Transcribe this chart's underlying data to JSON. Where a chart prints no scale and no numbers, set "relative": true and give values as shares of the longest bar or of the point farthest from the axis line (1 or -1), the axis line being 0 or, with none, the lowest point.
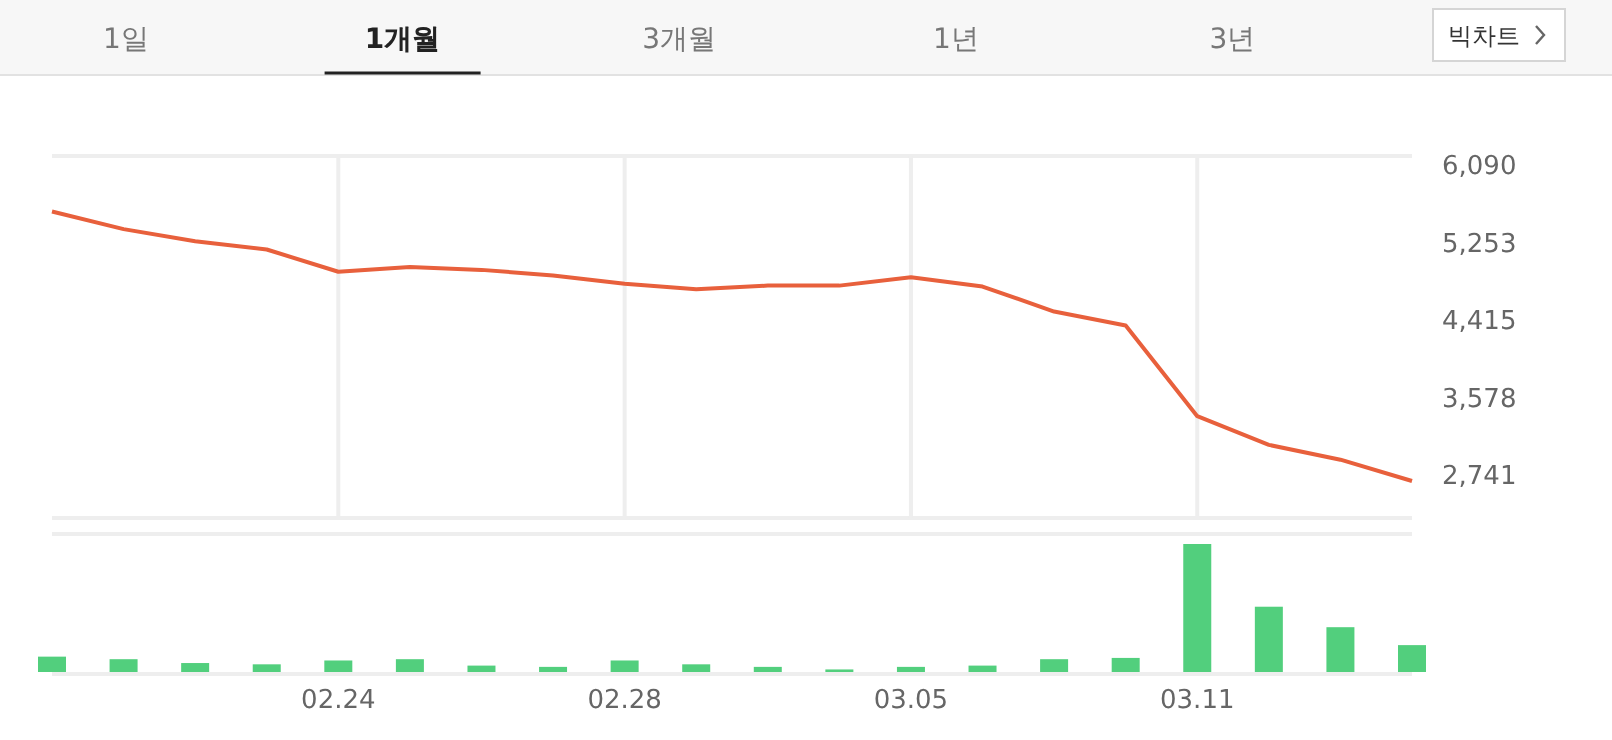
{
  "chart_data": [
    {
      "type": "other",
      "annotations": [
        "1일",
        "**1개월**",
        "3개월",
        "1년",
        "3년",
        "빅차트"
      ]
    },
    {
      "type": "line",
      "categories": [
        null,
        null,
        null,
        null,
        "02.24",
        null,
        null,
        null,
        "02.28",
        null,
        null,
        null,
        "03.05",
        null,
        null,
        null,
        "03.11",
        null,
        null,
        null
      ],
      "series": [
        {
          "color": "#e8603c",
          "values": [
            5580,
            5390,
            5260,
            5170,
            4930,
            4980,
            4950,
            4890,
            4800,
            4740,
            4780,
            4780,
            4870,
            4770,
            4500,
            4350,
            3370,
            3060,
            2900,
            2670
          ]
        }
      ],
      "ylim": [
        2270,
        6180
      ],
      "yticks": [
        {
          "value": 2741,
          "label": "2,741"
        },
        {
          "value": 3578,
          "label": "3,578"
        },
        {
          "value": 4415,
          "label": "4,415"
        },
        {
          "value": 5253,
          "label": "5,253"
        },
        {
          "value": 6090,
          "label": "6,090"
        }
      ],
      "grid": "x",
      "tick_labels": "y"
    },
    {
      "type": "bar",
      "categories": [
        null,
        null,
        null,
        null,
        "02.24",
        null,
        null,
        null,
        "02.28",
        null,
        null,
        null,
        "03.05",
        null,
        null,
        null,
        "03.11",
        null,
        null,
        null
      ],
      "relative": true,
      "series": [
        {
          "color": "#52cf7d",
          "values": [
            0.12,
            0.1,
            0.07,
            0.06,
            0.09,
            0.1,
            0.05,
            0.04,
            0.09,
            0.06,
            0.04,
            0.02,
            0.04,
            0.05,
            0.1,
            0.11,
            1,
            0.51,
            0.35,
            0.21
          ]
        }
      ],
      "tick_labels": "x"
    }
  ]
}
